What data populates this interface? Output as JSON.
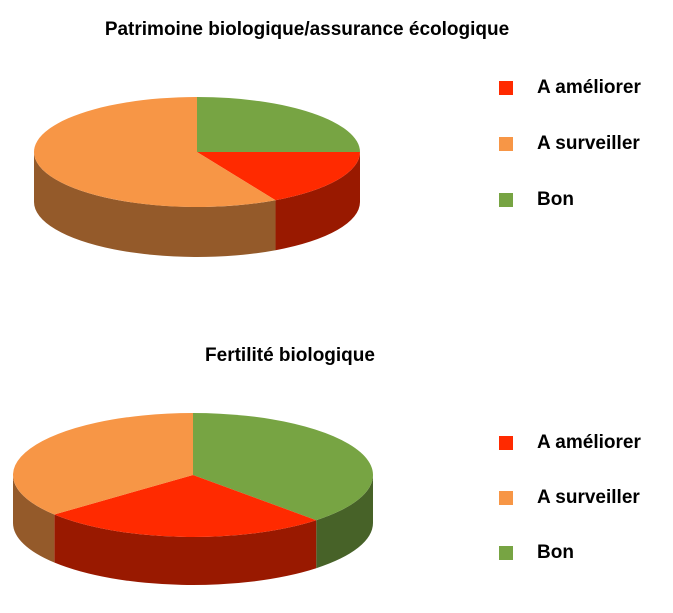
{
  "chart_data": [
    {
      "type": "pie",
      "title": "Patrimoine biologique/assurance écologique",
      "categories": [
        "A améliorer",
        "A surveiller",
        "Bon"
      ],
      "values": [
        17,
        58,
        25
      ],
      "colors": [
        "#ff2a00",
        "#f79646",
        "#77a443"
      ],
      "start_category": 2
    },
    {
      "type": "pie",
      "title": "Fertilité biologique",
      "categories": [
        "A améliorer",
        "A surveiller",
        "Bon"
      ],
      "values": [
        26,
        36,
        38
      ],
      "colors": [
        "#ff2a00",
        "#f79646",
        "#77a443"
      ],
      "start_category": 2
    }
  ]
}
